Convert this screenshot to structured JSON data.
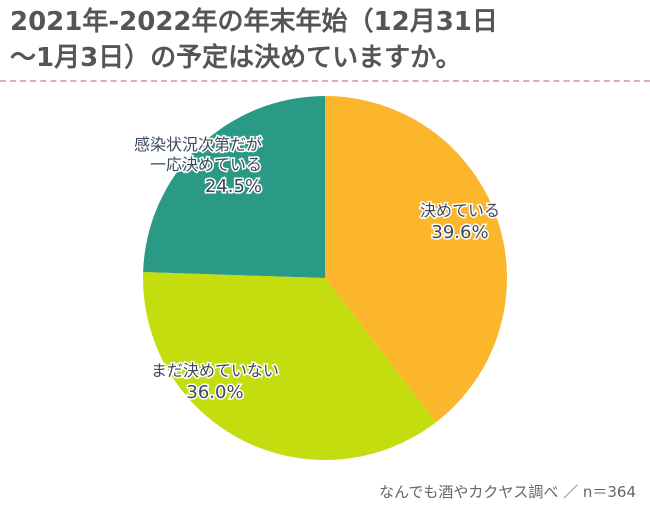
{
  "title": {
    "line1": "2021年-2022年の年末年始（12月31日",
    "line2": "～1月3日）の予定は決めていますか。"
  },
  "source": "なんでも酒やカクヤス調べ ／ n＝364",
  "colors": {
    "divider": "#e8a9b6",
    "label_text": "#3d4a5c"
  },
  "chart_data": {
    "type": "pie",
    "start_angle_deg": 0,
    "direction": "clockwise",
    "slices": [
      {
        "lines": [
          "決めている"
        ],
        "value_label": "39.6%",
        "value": 39.6,
        "color": "#fbb62c"
      },
      {
        "lines": [
          "まだ決めていない"
        ],
        "value_label": "36.0%",
        "value": 36.0,
        "color": "#c4dd0f"
      },
      {
        "lines": [
          "感染状況次第だが",
          "一応決めている"
        ],
        "value_label": "24.5%",
        "value": 24.5,
        "color": "#2a9a87"
      }
    ]
  }
}
